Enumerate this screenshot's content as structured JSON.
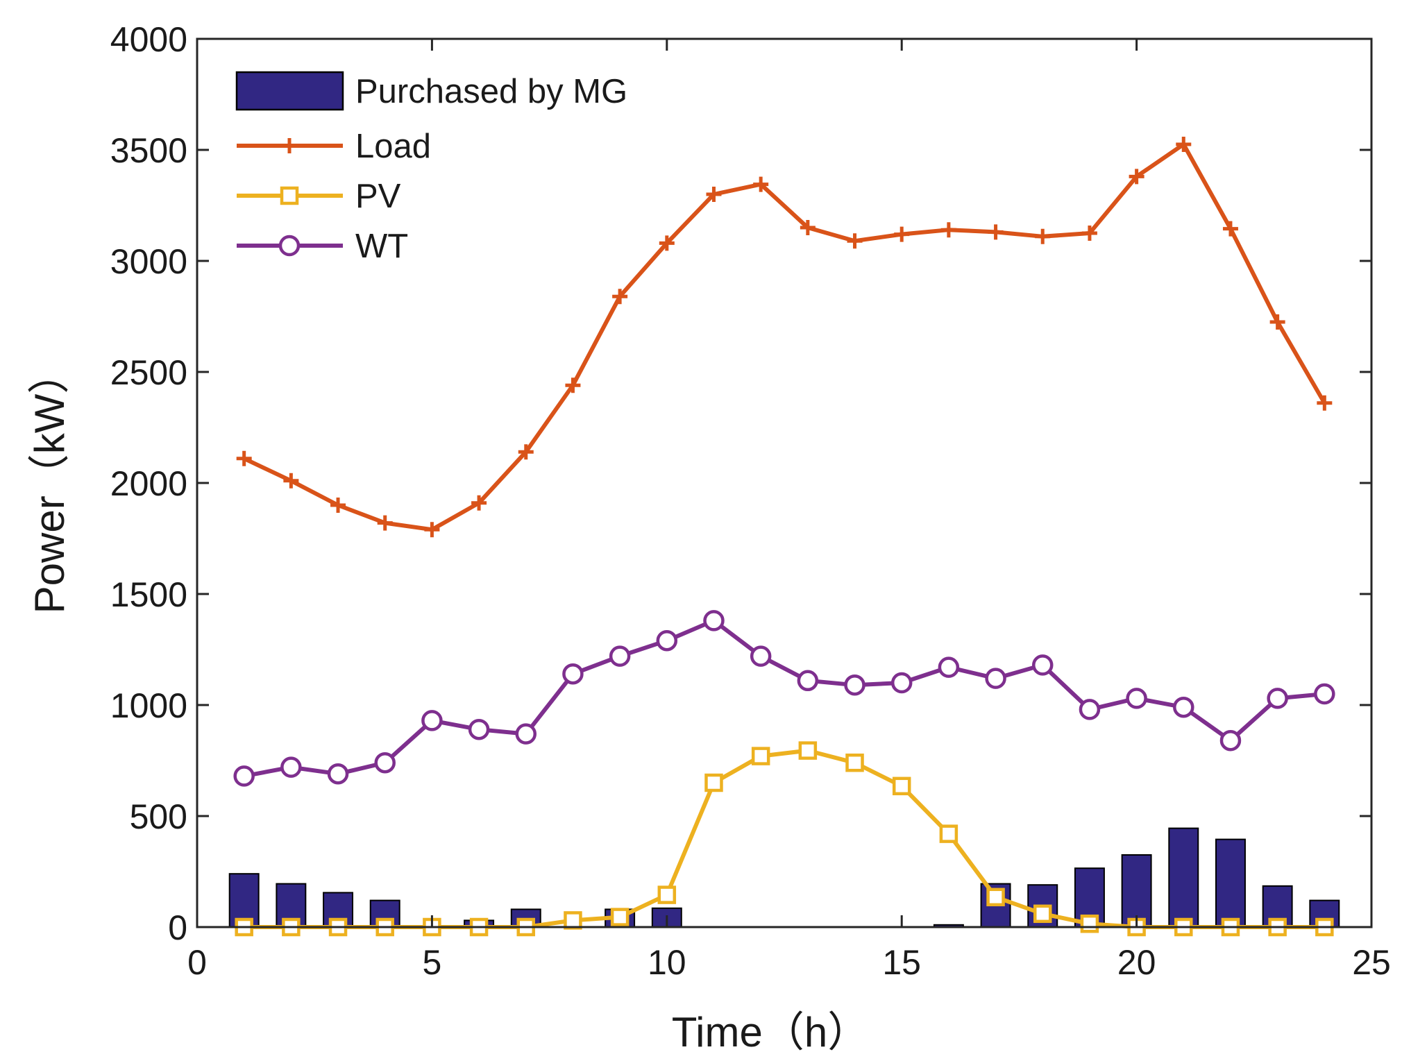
{
  "chart_data": {
    "type": "bar+line",
    "title": "",
    "xlabel": "Time（h）",
    "ylabel": "Power（kW）",
    "xlim": [
      0,
      25
    ],
    "ylim": [
      0,
      4000
    ],
    "xticks": [
      0,
      5,
      10,
      15,
      20,
      25
    ],
    "yticks": [
      0,
      500,
      1000,
      1500,
      2000,
      2500,
      3000,
      3500,
      4000
    ],
    "grid": false,
    "legend_position": "top-left",
    "x": [
      1,
      2,
      3,
      4,
      5,
      6,
      7,
      8,
      9,
      10,
      11,
      12,
      13,
      14,
      15,
      16,
      17,
      18,
      19,
      20,
      21,
      22,
      23,
      24
    ],
    "series": [
      {
        "name": "Purchased by MG",
        "kind": "bar",
        "color": "#312783",
        "edge": "#000000",
        "values": [
          240,
          195,
          155,
          120,
          5,
          30,
          80,
          0,
          80,
          85,
          0,
          0,
          0,
          0,
          0,
          10,
          195,
          190,
          265,
          325,
          445,
          395,
          185,
          120
        ]
      },
      {
        "name": "Load",
        "kind": "line",
        "marker": "plus",
        "color": "#D95319",
        "values": [
          2110,
          2010,
          1900,
          1820,
          1790,
          1910,
          2140,
          2440,
          2840,
          3080,
          3300,
          3345,
          3150,
          3090,
          3120,
          3140,
          3130,
          3110,
          3125,
          3380,
          3525,
          3145,
          2725,
          2360
        ]
      },
      {
        "name": "PV",
        "kind": "line",
        "marker": "square",
        "color": "#EDB120",
        "values": [
          0,
          0,
          0,
          0,
          0,
          0,
          0,
          30,
          45,
          145,
          650,
          770,
          795,
          740,
          635,
          420,
          135,
          60,
          15,
          0,
          0,
          0,
          0,
          0
        ]
      },
      {
        "name": "WT",
        "kind": "line",
        "marker": "circle",
        "color": "#7E2F8E",
        "values": [
          680,
          720,
          690,
          740,
          930,
          890,
          870,
          1140,
          1220,
          1290,
          1380,
          1220,
          1110,
          1090,
          1100,
          1170,
          1120,
          1180,
          980,
          1030,
          990,
          840,
          1030,
          1050
        ]
      }
    ]
  }
}
